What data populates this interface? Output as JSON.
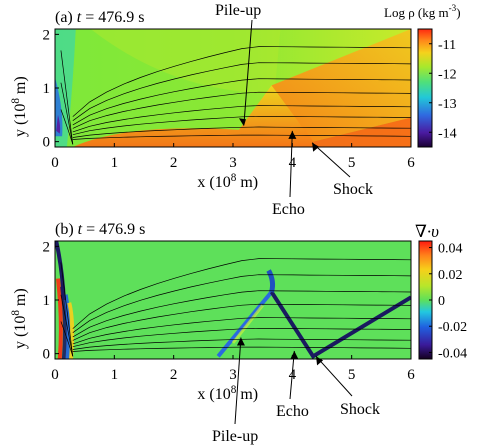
{
  "chart_data": [
    {
      "type": "heatmap",
      "panel_label": "(a)",
      "title_var": "t",
      "title_time": "= 476.9 s",
      "xlabel_pre": "x (10",
      "xlabel_exp": "8",
      "xlabel_post": " m)",
      "ylabel_pre": "y (10",
      "ylabel_exp": "8",
      "ylabel_post": " m)",
      "xlim": [
        0,
        6
      ],
      "ylim": [
        -0.1,
        2.1
      ],
      "xticks": [
        0,
        1,
        2,
        3,
        4,
        5,
        6
      ],
      "yticks": [
        0,
        1,
        2
      ],
      "colorbar": {
        "label_pre": "Log ρ (kg  m",
        "label_exp": "-3",
        "label_post": ")",
        "ticks": [
          "-11",
          "-12",
          "-13",
          "-14"
        ],
        "tick_values": [
          -11,
          -12,
          -13,
          -14
        ],
        "range": [
          -14.5,
          -10.5
        ]
      },
      "annotations": [
        "Pile-up",
        "Echo",
        "Shock"
      ],
      "features": {
        "pileup_x": 3.1,
        "echo_x": 4.0,
        "shock_x": 4.3,
        "shock_front_end": [
          6.0,
          0.45
        ],
        "apex": [
          3.65,
          1.05
        ]
      },
      "colors": {
        "background": "#66e53a",
        "hot": "#ff4d1a",
        "cold": "#2a2aa0"
      }
    },
    {
      "type": "heatmap",
      "panel_label": "(b)",
      "title_var": "t",
      "title_time": "= 476.9 s",
      "xlabel_pre": "x (10",
      "xlabel_exp": "8",
      "xlabel_post": " m)",
      "ylabel_pre": "y (10",
      "ylabel_exp": "8",
      "ylabel_post": " m)",
      "xlim": [
        0,
        6
      ],
      "ylim": [
        -0.1,
        2.1
      ],
      "xticks": [
        0,
        1,
        2,
        3,
        4,
        5,
        6
      ],
      "yticks": [
        0,
        1,
        2
      ],
      "colorbar": {
        "label": "∇·υ",
        "ticks": [
          "0.04",
          "0.02",
          "0",
          "-0.02",
          "-0.04"
        ],
        "tick_values": [
          0.04,
          0.02,
          0,
          -0.02,
          -0.04
        ],
        "range": [
          -0.045,
          0.045
        ]
      },
      "annotations": [
        "Pile-up",
        "Echo",
        "Shock"
      ],
      "features": {
        "pileup_x": 3.1,
        "echo_x": 4.0,
        "shock_x": 4.4,
        "shock_front_end": [
          6.0,
          1.05
        ],
        "apex": [
          3.65,
          1.15
        ]
      },
      "colors": {
        "background": "#55e35a",
        "front": "#1a1a60"
      }
    }
  ]
}
